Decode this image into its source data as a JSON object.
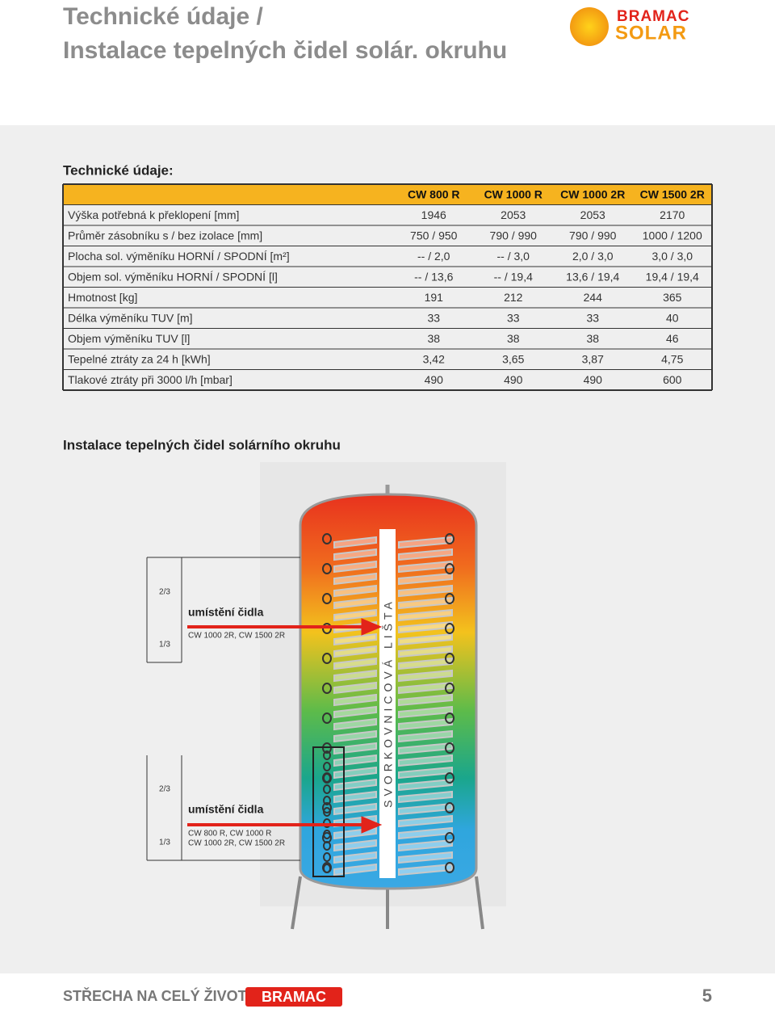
{
  "header": {
    "title_lines": [
      "Technické údaje /",
      "Instalace tepelných čidel solár. okruhu"
    ],
    "logo_top": "BRAMAC",
    "logo_bottom": "SOLAR"
  },
  "section1": {
    "title": "Technické údaje:"
  },
  "table": {
    "columns": [
      "CW 800 R",
      "CW 1000 R",
      "CW 1000 2R",
      "CW 1500 2R"
    ],
    "rows": [
      [
        "Výška potřebná k překlopení [mm]",
        "1946",
        "2053",
        "2053",
        "2170"
      ],
      [
        "Průměr zásobníku s / bez izolace [mm]",
        "750 / 950",
        "790 / 990",
        "790 / 990",
        "1000 / 1200"
      ],
      [
        "Plocha sol. výměníku HORNÍ / SPODNÍ [m²]",
        "-- / 2,0",
        "-- / 3,0",
        "2,0 / 3,0",
        "3,0 / 3,0"
      ],
      [
        "Objem sol. výměníku HORNÍ / SPODNÍ [l]",
        "-- / 13,6",
        "-- / 19,4",
        "13,6 / 19,4",
        "19,4 / 19,4"
      ],
      [
        "Hmotnost [kg]",
        "191",
        "212",
        "244",
        "365"
      ],
      [
        "Délka výměníku TUV [m]",
        "33",
        "33",
        "33",
        "40"
      ],
      [
        "Objem výměníku TUV [l]",
        "38",
        "38",
        "38",
        "46"
      ],
      [
        "Tepelné ztráty za 24 h [kWh]",
        "3,42",
        "3,65",
        "3,87",
        "4,75"
      ],
      [
        "Tlakové ztráty při 3000 l/h [mbar]",
        "490",
        "490",
        "490",
        "600"
      ]
    ]
  },
  "section2": {
    "title": "Instalace tepelných čidel solárního okruhu"
  },
  "diagram": {
    "upper": {
      "two_thirds": "2/3",
      "one_third": "1/3",
      "label": "umístění čidla",
      "models": [
        "CW 1000 2R, CW 1500 2R"
      ]
    },
    "lower": {
      "two_thirds": "2/3",
      "one_third": "1/3",
      "label": "umístění čidla",
      "models": [
        "CW 800 R, CW 1000 R",
        "CW 1000 2R, CW 1500 2R"
      ]
    },
    "strip": "SVORKOVNICOVÁ LIŠTA"
  },
  "footer": {
    "slogan": "STŘECHA NA CELÝ ŽIVOT",
    "brand": "BRAMAC",
    "page": "5"
  }
}
